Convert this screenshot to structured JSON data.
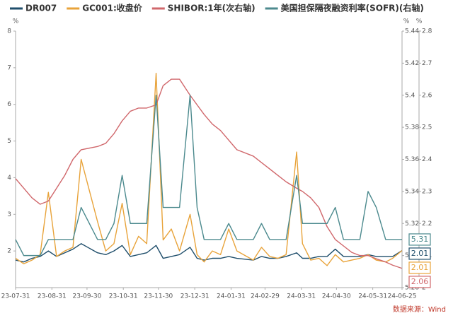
{
  "chart_data": {
    "type": "line",
    "legend": "top",
    "y_unit": "%",
    "y2_unit": "%",
    "y3_unit": "%",
    "source": "数据来源：Wind",
    "x": [
      "23-07-31",
      "23-08-07",
      "23-08-14",
      "23-08-21",
      "23-08-28",
      "23-09-04",
      "23-09-11",
      "23-09-18",
      "23-09-25",
      "23-10-09",
      "23-10-16",
      "23-10-23",
      "23-10-30",
      "23-11-06",
      "23-11-13",
      "23-11-20",
      "23-11-28",
      "23-12-04",
      "23-12-11",
      "23-12-18",
      "23-12-27",
      "24-01-02",
      "24-01-08",
      "24-01-15",
      "24-01-22",
      "24-01-29",
      "24-02-05",
      "24-02-19",
      "24-02-26",
      "24-03-04",
      "24-03-11",
      "24-03-18",
      "24-03-27",
      "24-04-01",
      "24-04-08",
      "24-04-15",
      "24-04-22",
      "24-04-29",
      "24-05-06",
      "24-05-13",
      "24-05-20",
      "24-05-27",
      "24-06-03",
      "24-06-11",
      "24-06-17",
      "24-06-25"
    ],
    "xlim": [
      "23-07-31",
      "24-06-25"
    ],
    "xticks": [
      "23-07-31",
      "23-08-31",
      "23-09-30",
      "23-10-31",
      "23-11-30",
      "23-12-31",
      "24-01-31",
      "24-02-29",
      "24-03-31",
      "24-04-30",
      "24-05-31",
      "24-06-25"
    ],
    "ylim": [
      1,
      8
    ],
    "yticks": [
      2,
      3,
      4,
      5,
      6,
      7,
      8
    ],
    "y2lim": [
      5.28,
      5.44
    ],
    "y2ticks": [
      5.28,
      5.3,
      5.32,
      5.34,
      5.36,
      5.38,
      5.4,
      5.42,
      5.44
    ],
    "y3lim": [
      2,
      2.8
    ],
    "y3ticks": [
      2,
      2.1,
      2.2,
      2.3,
      2.4,
      2.5,
      2.6,
      2.7,
      2.8
    ],
    "series": [
      {
        "name": "DR007",
        "color": "#1f4e6b",
        "axis": "y",
        "values": [
          1.75,
          1.7,
          1.8,
          1.85,
          2.0,
          1.85,
          1.95,
          2.05,
          2.2,
          1.95,
          1.9,
          2.0,
          2.15,
          1.85,
          1.9,
          1.95,
          2.15,
          1.8,
          1.85,
          1.9,
          2.1,
          1.8,
          1.75,
          1.8,
          1.8,
          1.85,
          1.8,
          1.75,
          1.85,
          1.8,
          1.8,
          1.85,
          1.95,
          1.8,
          1.8,
          1.85,
          1.85,
          2.05,
          1.85,
          1.85,
          1.85,
          1.9,
          1.85,
          1.85,
          1.85,
          2.01
        ]
      },
      {
        "name": "GC001:收盘价",
        "color": "#e8a33a",
        "axis": "y",
        "values": [
          1.8,
          1.65,
          1.75,
          1.9,
          3.6,
          1.85,
          2.0,
          2.1,
          4.5,
          2.8,
          2.0,
          2.2,
          3.3,
          1.9,
          2.4,
          2.2,
          6.85,
          2.3,
          2.6,
          2.0,
          3.0,
          1.9,
          1.7,
          2.0,
          1.9,
          2.6,
          2.0,
          1.75,
          2.1,
          1.85,
          1.8,
          1.9,
          4.7,
          2.2,
          1.75,
          1.8,
          1.6,
          1.9,
          1.7,
          1.75,
          1.8,
          1.9,
          1.75,
          1.7,
          1.8,
          2.01
        ]
      },
      {
        "name": "SHIBOR:1年(次右轴)",
        "color": "#d0676b",
        "axis": "y3",
        "values": [
          2.34,
          2.31,
          2.28,
          2.26,
          2.27,
          2.31,
          2.35,
          2.4,
          2.43,
          2.44,
          2.45,
          2.48,
          2.52,
          2.55,
          2.56,
          2.56,
          2.57,
          2.63,
          2.65,
          2.65,
          2.6,
          2.57,
          2.54,
          2.51,
          2.49,
          2.46,
          2.43,
          2.41,
          2.39,
          2.37,
          2.35,
          2.33,
          2.31,
          2.3,
          2.28,
          2.25,
          2.19,
          2.15,
          2.13,
          2.11,
          2.1,
          2.1,
          2.09,
          2.08,
          2.07,
          2.06
        ]
      },
      {
        "name": "美国担保隔夜融资利率(SOFR)(右轴)",
        "color": "#4c8a8e",
        "axis": "y2",
        "values": [
          5.31,
          5.3,
          5.3,
          5.3,
          5.31,
          5.31,
          5.31,
          5.31,
          5.33,
          5.31,
          5.31,
          5.32,
          5.35,
          5.32,
          5.32,
          5.32,
          5.4,
          5.33,
          5.33,
          5.33,
          5.4,
          5.33,
          5.31,
          5.31,
          5.31,
          5.32,
          5.31,
          5.31,
          5.32,
          5.31,
          5.31,
          5.31,
          5.35,
          5.32,
          5.32,
          5.32,
          5.32,
          5.33,
          5.31,
          5.31,
          5.31,
          5.34,
          5.33,
          5.31,
          5.31,
          5.31
        ]
      }
    ]
  }
}
